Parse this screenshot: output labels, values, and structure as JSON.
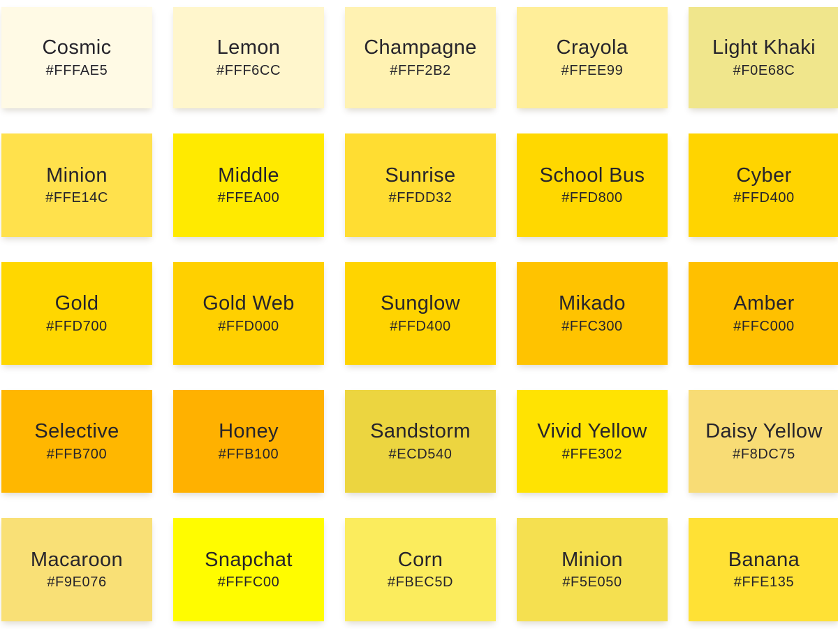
{
  "page": {
    "background": "#FFFFFF",
    "text_color": "#26242B"
  },
  "chart_data": {
    "type": "table",
    "columns": [
      "color_name",
      "hex_code"
    ],
    "layout": {
      "rows": 5,
      "cols": 5,
      "legend_position": "none",
      "grid": "swatch-grid"
    },
    "swatches": [
      {
        "name": "Cosmic",
        "hex": "#FFFAE5"
      },
      {
        "name": "Lemon",
        "hex": "#FFF6CC"
      },
      {
        "name": "Champagne",
        "hex": "#FFF2B2"
      },
      {
        "name": "Crayola",
        "hex": "#FFEE99"
      },
      {
        "name": "Light Khaki",
        "hex": "#F0E68C"
      },
      {
        "name": "Minion",
        "hex": "#FFE14C"
      },
      {
        "name": "Middle",
        "hex": "#FFEA00"
      },
      {
        "name": "Sunrise",
        "hex": "#FFDD32"
      },
      {
        "name": "School Bus",
        "hex": "#FFD800"
      },
      {
        "name": "Cyber",
        "hex": "#FFD400"
      },
      {
        "name": "Gold",
        "hex": "#FFD700"
      },
      {
        "name": "Gold Web",
        "hex": "#FFD000"
      },
      {
        "name": "Sunglow",
        "hex": "#FFD400"
      },
      {
        "name": "Mikado",
        "hex": "#FFC300"
      },
      {
        "name": "Amber",
        "hex": "#FFC000"
      },
      {
        "name": "Selective",
        "hex": "#FFB700"
      },
      {
        "name": "Honey",
        "hex": "#FFB100"
      },
      {
        "name": "Sandstorm",
        "hex": "#ECD540"
      },
      {
        "name": "Vivid Yellow",
        "hex": "#FFE302"
      },
      {
        "name": "Daisy Yellow",
        "hex": "#F8DC75"
      },
      {
        "name": "Macaroon",
        "hex": "#F9E076"
      },
      {
        "name": "Snapchat",
        "hex": "#FFFC00"
      },
      {
        "name": "Corn",
        "hex": "#FBEC5D"
      },
      {
        "name": "Minion",
        "hex": "#F5E050"
      },
      {
        "name": "Banana",
        "hex": "#FFE135"
      }
    ]
  }
}
